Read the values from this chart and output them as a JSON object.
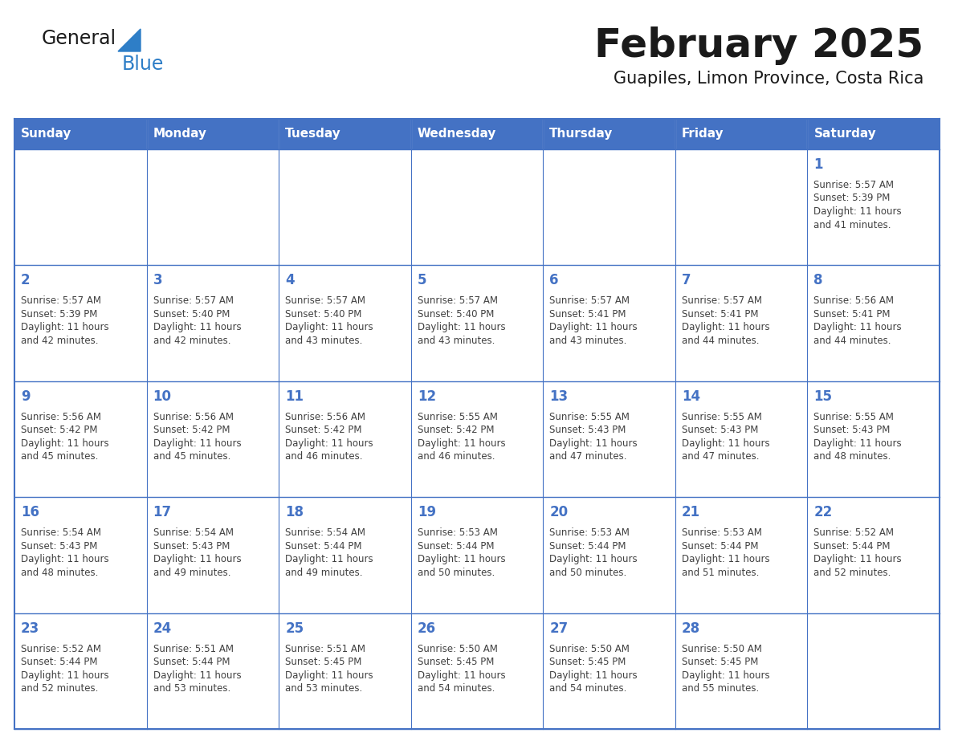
{
  "title": "February 2025",
  "subtitle": "Guapiles, Limon Province, Costa Rica",
  "days_of_week": [
    "Sunday",
    "Monday",
    "Tuesday",
    "Wednesday",
    "Thursday",
    "Friday",
    "Saturday"
  ],
  "header_bg": "#4472C4",
  "header_text": "#FFFFFF",
  "cell_bg": "#FFFFFF",
  "border_color": "#4472C4",
  "day_num_color": "#4472C4",
  "info_color": "#404040",
  "title_color": "#1a1a1a",
  "logo_general_color": "#1a1a1a",
  "logo_blue_color": "#2e7ec7",
  "calendar": [
    [
      {
        "day": null,
        "sunrise": null,
        "sunset": null,
        "daylight": null
      },
      {
        "day": null,
        "sunrise": null,
        "sunset": null,
        "daylight": null
      },
      {
        "day": null,
        "sunrise": null,
        "sunset": null,
        "daylight": null
      },
      {
        "day": null,
        "sunrise": null,
        "sunset": null,
        "daylight": null
      },
      {
        "day": null,
        "sunrise": null,
        "sunset": null,
        "daylight": null
      },
      {
        "day": null,
        "sunrise": null,
        "sunset": null,
        "daylight": null
      },
      {
        "day": 1,
        "sunrise": "5:57 AM",
        "sunset": "5:39 PM",
        "daylight": "11 hours\nand 41 minutes."
      }
    ],
    [
      {
        "day": 2,
        "sunrise": "5:57 AM",
        "sunset": "5:39 PM",
        "daylight": "11 hours\nand 42 minutes."
      },
      {
        "day": 3,
        "sunrise": "5:57 AM",
        "sunset": "5:40 PM",
        "daylight": "11 hours\nand 42 minutes."
      },
      {
        "day": 4,
        "sunrise": "5:57 AM",
        "sunset": "5:40 PM",
        "daylight": "11 hours\nand 43 minutes."
      },
      {
        "day": 5,
        "sunrise": "5:57 AM",
        "sunset": "5:40 PM",
        "daylight": "11 hours\nand 43 minutes."
      },
      {
        "day": 6,
        "sunrise": "5:57 AM",
        "sunset": "5:41 PM",
        "daylight": "11 hours\nand 43 minutes."
      },
      {
        "day": 7,
        "sunrise": "5:57 AM",
        "sunset": "5:41 PM",
        "daylight": "11 hours\nand 44 minutes."
      },
      {
        "day": 8,
        "sunrise": "5:56 AM",
        "sunset": "5:41 PM",
        "daylight": "11 hours\nand 44 minutes."
      }
    ],
    [
      {
        "day": 9,
        "sunrise": "5:56 AM",
        "sunset": "5:42 PM",
        "daylight": "11 hours\nand 45 minutes."
      },
      {
        "day": 10,
        "sunrise": "5:56 AM",
        "sunset": "5:42 PM",
        "daylight": "11 hours\nand 45 minutes."
      },
      {
        "day": 11,
        "sunrise": "5:56 AM",
        "sunset": "5:42 PM",
        "daylight": "11 hours\nand 46 minutes."
      },
      {
        "day": 12,
        "sunrise": "5:55 AM",
        "sunset": "5:42 PM",
        "daylight": "11 hours\nand 46 minutes."
      },
      {
        "day": 13,
        "sunrise": "5:55 AM",
        "sunset": "5:43 PM",
        "daylight": "11 hours\nand 47 minutes."
      },
      {
        "day": 14,
        "sunrise": "5:55 AM",
        "sunset": "5:43 PM",
        "daylight": "11 hours\nand 47 minutes."
      },
      {
        "day": 15,
        "sunrise": "5:55 AM",
        "sunset": "5:43 PM",
        "daylight": "11 hours\nand 48 minutes."
      }
    ],
    [
      {
        "day": 16,
        "sunrise": "5:54 AM",
        "sunset": "5:43 PM",
        "daylight": "11 hours\nand 48 minutes."
      },
      {
        "day": 17,
        "sunrise": "5:54 AM",
        "sunset": "5:43 PM",
        "daylight": "11 hours\nand 49 minutes."
      },
      {
        "day": 18,
        "sunrise": "5:54 AM",
        "sunset": "5:44 PM",
        "daylight": "11 hours\nand 49 minutes."
      },
      {
        "day": 19,
        "sunrise": "5:53 AM",
        "sunset": "5:44 PM",
        "daylight": "11 hours\nand 50 minutes."
      },
      {
        "day": 20,
        "sunrise": "5:53 AM",
        "sunset": "5:44 PM",
        "daylight": "11 hours\nand 50 minutes."
      },
      {
        "day": 21,
        "sunrise": "5:53 AM",
        "sunset": "5:44 PM",
        "daylight": "11 hours\nand 51 minutes."
      },
      {
        "day": 22,
        "sunrise": "5:52 AM",
        "sunset": "5:44 PM",
        "daylight": "11 hours\nand 52 minutes."
      }
    ],
    [
      {
        "day": 23,
        "sunrise": "5:52 AM",
        "sunset": "5:44 PM",
        "daylight": "11 hours\nand 52 minutes."
      },
      {
        "day": 24,
        "sunrise": "5:51 AM",
        "sunset": "5:44 PM",
        "daylight": "11 hours\nand 53 minutes."
      },
      {
        "day": 25,
        "sunrise": "5:51 AM",
        "sunset": "5:45 PM",
        "daylight": "11 hours\nand 53 minutes."
      },
      {
        "day": 26,
        "sunrise": "5:50 AM",
        "sunset": "5:45 PM",
        "daylight": "11 hours\nand 54 minutes."
      },
      {
        "day": 27,
        "sunrise": "5:50 AM",
        "sunset": "5:45 PM",
        "daylight": "11 hours\nand 54 minutes."
      },
      {
        "day": 28,
        "sunrise": "5:50 AM",
        "sunset": "5:45 PM",
        "daylight": "11 hours\nand 55 minutes."
      },
      {
        "day": null,
        "sunrise": null,
        "sunset": null,
        "daylight": null
      }
    ]
  ]
}
